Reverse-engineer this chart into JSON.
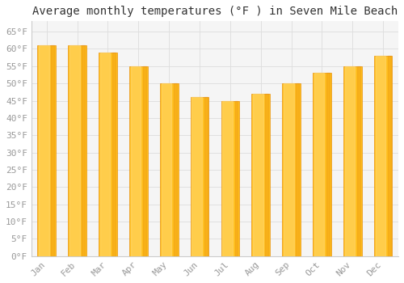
{
  "title": "Average monthly temperatures (°F ) in Seven Mile Beach",
  "months": [
    "Jan",
    "Feb",
    "Mar",
    "Apr",
    "May",
    "Jun",
    "Jul",
    "Aug",
    "Sep",
    "Oct",
    "Nov",
    "Dec"
  ],
  "values": [
    61,
    61,
    59,
    55,
    50,
    46,
    45,
    47,
    50,
    53,
    55,
    58
  ],
  "bar_color_main": "#FFC020",
  "bar_color_edge": "#E8900A",
  "bar_color_light": "#FFD870",
  "background_color": "#ffffff",
  "plot_bg_color": "#f5f5f5",
  "grid_color": "#dddddd",
  "ytick_labels": [
    "0°F",
    "5°F",
    "10°F",
    "15°F",
    "20°F",
    "25°F",
    "30°F",
    "35°F",
    "40°F",
    "45°F",
    "50°F",
    "55°F",
    "60°F",
    "65°F"
  ],
  "ytick_values": [
    0,
    5,
    10,
    15,
    20,
    25,
    30,
    35,
    40,
    45,
    50,
    55,
    60,
    65
  ],
  "ylim": [
    0,
    68
  ],
  "title_fontsize": 10,
  "tick_fontsize": 8,
  "tick_color": "#999999",
  "spine_color": "#cccccc",
  "font_family": "monospace",
  "bar_width": 0.6
}
